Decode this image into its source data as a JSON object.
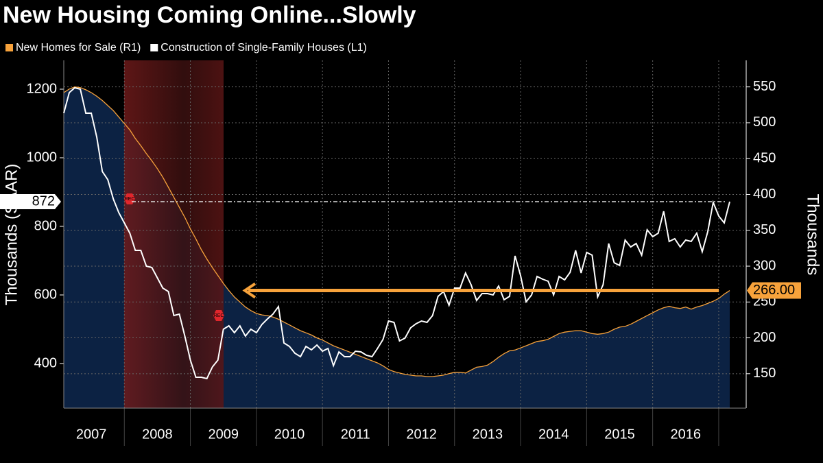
{
  "chart_data": {
    "type": "line",
    "title": "New Housing Coming Online...Slowly",
    "ylabel": "Thousands (SAAR)",
    "y2label": "Thousands",
    "recession_label": "REC",
    "categories": [
      null,
      null,
      null,
      null,
      null,
      "2007",
      null,
      null,
      null,
      null,
      null,
      null,
      null,
      null,
      null,
      null,
      null,
      "2008",
      null,
      null,
      null,
      null,
      null,
      null,
      null,
      null,
      null,
      null,
      null,
      "2009",
      null,
      null,
      null,
      null,
      null,
      null,
      null,
      null,
      null,
      null,
      null,
      "2010",
      null,
      null,
      null,
      null,
      null,
      null,
      null,
      null,
      null,
      null,
      null,
      "2011",
      null,
      null,
      null,
      null,
      null,
      null,
      null,
      null,
      null,
      null,
      null,
      "2012",
      null,
      null,
      null,
      null,
      null,
      null,
      null,
      null,
      null,
      null,
      null,
      "2013",
      null,
      null,
      null,
      null,
      null,
      null,
      null,
      null,
      null,
      null,
      null,
      "2014",
      null,
      null,
      null,
      null,
      null,
      null,
      null,
      null,
      null,
      null,
      null,
      "2015",
      null,
      null,
      null,
      null,
      null,
      null,
      null,
      null,
      null,
      null,
      null,
      "2016",
      null,
      null,
      null,
      null,
      null,
      null,
      null,
      null
    ],
    "series": [
      {
        "name": "New Homes for Sale (R1)",
        "color": "#f7a23b",
        "axis": "y2",
        "values": [
          542,
          547,
          550,
          549,
          546,
          542,
          537,
          531,
          524,
          517,
          508,
          499,
          490,
          478,
          468,
          457,
          447,
          436,
          424,
          410,
          396,
          382,
          368,
          352,
          338,
          323,
          310,
          298,
          287,
          276,
          266,
          257,
          250,
          243,
          238,
          234,
          232,
          231,
          229,
          226,
          222,
          218,
          214,
          210,
          207,
          204,
          200,
          197,
          193,
          189,
          186,
          183,
          180,
          177,
          174,
          171,
          168,
          165,
          161,
          156,
          153,
          151,
          149,
          148,
          147,
          147,
          146,
          146,
          147,
          148,
          150,
          152,
          152,
          151,
          155,
          159,
          160,
          162,
          167,
          173,
          178,
          182,
          183,
          186,
          189,
          192,
          195,
          196,
          198,
          202,
          206,
          208,
          209,
          210,
          210,
          208,
          206,
          205,
          206,
          208,
          212,
          215,
          216,
          219,
          223,
          227,
          231,
          235,
          239,
          242,
          244,
          242,
          241,
          243,
          240,
          243,
          245,
          248,
          251,
          255,
          261,
          266
        ]
      },
      {
        "name": "Construction of Single-Family Houses (L1)",
        "color": "#ffffff",
        "values": [
          1130,
          1190,
          1204,
          1200,
          1130,
          1130,
          1060,
          960,
          936,
          880,
          840,
          810,
          780,
          730,
          730,
          684,
          680,
          650,
          620,
          610,
          540,
          544,
          480,
          410,
          360,
          360,
          356,
          390,
          410,
          500,
          510,
          490,
          510,
          480,
          500,
          490,
          514,
          530,
          544,
          566,
          460,
          450,
          430,
          420,
          450,
          440,
          454,
          436,
          444,
          394,
          434,
          420,
          420,
          436,
          434,
          424,
          420,
          444,
          470,
          524,
          520,
          466,
          474,
          504,
          516,
          524,
          520,
          540,
          596,
          610,
          570,
          620,
          620,
          664,
          630,
          584,
          604,
          604,
          600,
          626,
          586,
          596,
          714,
          656,
          580,
          600,
          654,
          646,
          640,
          600,
          654,
          644,
          666,
          730,
          664,
          724,
          716,
          594,
          630,
          750,
          694,
          686,
          760,
          740,
          750,
          716,
          790,
          770,
          780,
          844,
          756,
          764,
          740,
          760,
          756,
          780,
          726,
          784,
          870,
          830,
          810,
          872
        ]
      }
    ],
    "annotations": [
      {
        "label": "266.00",
        "value": 266,
        "axis": "y2"
      }
    ],
    "ylim": [
      270,
      1284
    ],
    "yticks": [
      400,
      600,
      800,
      1000,
      1200
    ],
    "y2lim": [
      102,
      587
    ],
    "y2ticks": [
      150,
      200,
      250,
      300,
      350,
      400,
      450,
      500,
      550
    ],
    "grid": true
  }
}
